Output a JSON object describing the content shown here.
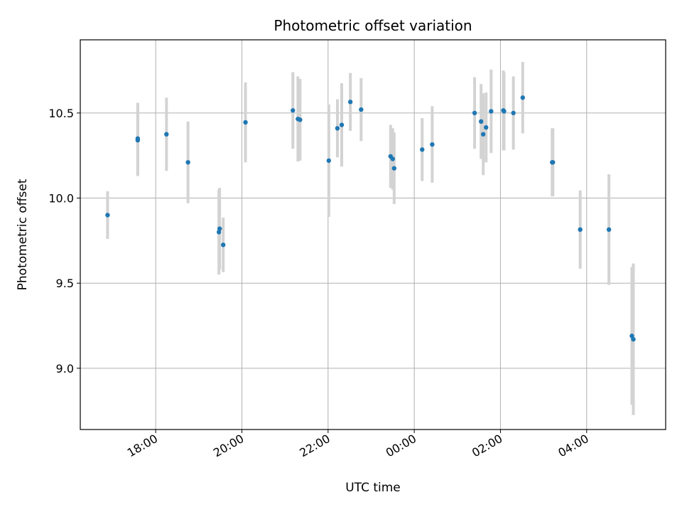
{
  "chart_data": {
    "type": "scatter",
    "title": "Photometric offset variation",
    "xlabel": "UTC time",
    "ylabel": "Photometric offset",
    "x_unit": "UTC time (HH:MM)",
    "xlim": [
      "16:15",
      "05:50 next day"
    ],
    "ylim": [
      8.64,
      10.93
    ],
    "x_ticks": [
      "18:00",
      "20:00",
      "22:00",
      "00:00",
      "02:00",
      "04:00"
    ],
    "y_ticks": [
      "9.0",
      "9.5",
      "10.0",
      "10.5"
    ],
    "y_tick_values": [
      9.0,
      9.5,
      10.0,
      10.5
    ],
    "grid": true,
    "point_color": "#1f77b4",
    "errorbar_color": "#d3d3d3",
    "points": [
      {
        "time": "16:53",
        "y": 9.9,
        "err": 0.14
      },
      {
        "time": "17:35",
        "y": 10.35,
        "err": 0.21
      },
      {
        "time": "17:35",
        "y": 10.34,
        "err": 0.21
      },
      {
        "time": "18:15",
        "y": 10.375,
        "err": 0.215
      },
      {
        "time": "18:45",
        "y": 10.21,
        "err": 0.24
      },
      {
        "time": "19:28",
        "y": 9.8,
        "err": 0.25
      },
      {
        "time": "19:29",
        "y": 9.82,
        "err": 0.24
      },
      {
        "time": "19:34",
        "y": 9.725,
        "err": 0.16
      },
      {
        "time": "20:05",
        "y": 10.445,
        "err": 0.235
      },
      {
        "time": "21:11",
        "y": 10.515,
        "err": 0.225
      },
      {
        "time": "21:18",
        "y": 10.465,
        "err": 0.25
      },
      {
        "time": "21:21",
        "y": 10.46,
        "err": 0.24
      },
      {
        "time": "22:01",
        "y": 10.22,
        "err": 0.33
      },
      {
        "time": "22:13",
        "y": 10.41,
        "err": 0.17
      },
      {
        "time": "22:19",
        "y": 10.43,
        "err": 0.245
      },
      {
        "time": "22:31",
        "y": 10.565,
        "err": 0.17
      },
      {
        "time": "22:46",
        "y": 10.52,
        "err": 0.185
      },
      {
        "time": "23:27",
        "y": 10.245,
        "err": 0.185
      },
      {
        "time": "23:30",
        "y": 10.23,
        "err": 0.18
      },
      {
        "time": "23:32",
        "y": 10.175,
        "err": 0.21
      },
      {
        "time": "00:11",
        "y": 10.285,
        "err": 0.185
      },
      {
        "time": "00:25",
        "y": 10.315,
        "err": 0.225
      },
      {
        "time": "01:24",
        "y": 10.5,
        "err": 0.21
      },
      {
        "time": "01:33",
        "y": 10.45,
        "err": 0.22
      },
      {
        "time": "01:36",
        "y": 10.375,
        "err": 0.24
      },
      {
        "time": "01:40",
        "y": 10.415,
        "err": 0.205
      },
      {
        "time": "01:47",
        "y": 10.51,
        "err": 0.245
      },
      {
        "time": "02:04",
        "y": 10.515,
        "err": 0.235
      },
      {
        "time": "02:05",
        "y": 10.51,
        "err": 0.23
      },
      {
        "time": "02:18",
        "y": 10.5,
        "err": 0.215
      },
      {
        "time": "02:31",
        "y": 10.59,
        "err": 0.21
      },
      {
        "time": "03:12",
        "y": 10.21,
        "err": 0.2
      },
      {
        "time": "03:13",
        "y": 10.21,
        "err": 0.2
      },
      {
        "time": "03:51",
        "y": 9.815,
        "err": 0.23
      },
      {
        "time": "04:31",
        "y": 9.815,
        "err": 0.325
      },
      {
        "time": "05:03",
        "y": 9.19,
        "err": 0.405
      },
      {
        "time": "05:05",
        "y": 9.17,
        "err": 0.445
      }
    ]
  }
}
